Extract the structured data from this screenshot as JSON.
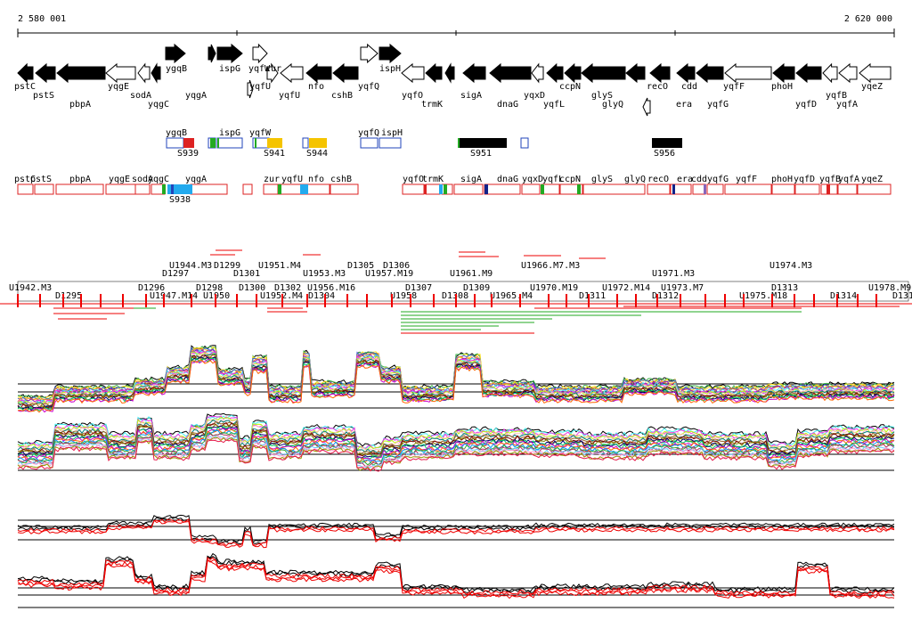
{
  "ruler": {
    "start_label": "2 580 001",
    "end_label": "2 620 000"
  },
  "colors": {
    "filled": "#000000",
    "hollow": "#ffffff",
    "box_red": "#dd2222",
    "box_blue": "#2244bb",
    "red": "#ee0000",
    "green": "#22aa22",
    "yellow": "#f5c400",
    "cyan": "#22aaee"
  },
  "genes_top": [
    "ygqB",
    "ispG",
    "yqfW",
    "zur"
  ],
  "genes": [
    {
      "name": "pstC",
      "row": 1
    },
    {
      "name": "pstS",
      "row": 2
    },
    {
      "name": "pbpA",
      "row": 3
    },
    {
      "name": "yqgE",
      "row": 1
    },
    {
      "name": "sodA",
      "row": 2
    },
    {
      "name": "yqgC",
      "row": 3
    },
    {
      "name": "yqgA",
      "row": 2
    },
    {
      "name": "yqfU",
      "row": 1
    },
    {
      "name": "yqfU",
      "row": 2
    },
    {
      "name": "nfo",
      "row": 1
    },
    {
      "name": "cshB",
      "row": 2
    },
    {
      "name": "yqfQ",
      "row": 1
    },
    {
      "name": "ispH",
      "row": 0
    },
    {
      "name": "yqfO",
      "row": 2
    },
    {
      "name": "trmK",
      "row": 3
    },
    {
      "name": "sigA",
      "row": 2
    },
    {
      "name": "dnaG",
      "row": 3
    },
    {
      "name": "yqxD",
      "row": 2
    },
    {
      "name": "ccpN",
      "row": 1
    },
    {
      "name": "yqfL",
      "row": 3
    },
    {
      "name": "glyS",
      "row": 2
    },
    {
      "name": "glyQ",
      "row": 3
    },
    {
      "name": "recO",
      "row": 1
    },
    {
      "name": "era",
      "row": 3
    },
    {
      "name": "cdd",
      "row": 1
    },
    {
      "name": "yqfG",
      "row": 3
    },
    {
      "name": "yqfF",
      "row": 1
    },
    {
      "name": "phoH",
      "row": 1
    },
    {
      "name": "yqfD",
      "row": 3
    },
    {
      "name": "yqfB",
      "row": 2
    },
    {
      "name": "yqfA",
      "row": 3
    },
    {
      "name": "yqeZ",
      "row": 1
    }
  ],
  "sbox_labels": [
    "ygqB",
    "ispG",
    "yqfW",
    "yqfQ",
    "ispH"
  ],
  "sbox_names": [
    "S939",
    "S941",
    "S944",
    "S951",
    "S956"
  ],
  "utr_labels": [
    "pstC",
    "pstS",
    "pbpA",
    "yqgE",
    "sodA",
    "yqgC",
    "yqgA",
    "zur",
    "yqfU",
    "nfo",
    "cshB",
    "yqfO",
    "trmK",
    "sigA",
    "dnaG",
    "yqxD",
    "yqfL",
    "ccpN",
    "glyS",
    "glyQ",
    "recO",
    "era",
    "cdd",
    "yqfG",
    "yqfF",
    "phoH",
    "yqfD",
    "yqfB",
    "yqfA",
    "yqeZ"
  ],
  "s938": "S938",
  "upper_labels": [
    "U1944.M3",
    "D1297",
    "D1299",
    "D1301",
    "U1951.M4",
    "U1953.M3",
    "D1305",
    "U1957.M19",
    "D1306",
    "U1961.M9",
    "U1966.M7.M3",
    "U1971.M3",
    "U1974.M3"
  ],
  "lower_labels": [
    "U1942.M3",
    "D1295",
    "D1296",
    "U1947.M14",
    "D1298",
    "U1950",
    "D1300",
    "U1952.M4",
    "D1302",
    "D1304",
    "U1956.M16",
    "U1958",
    "D1307",
    "D1308",
    "D1309",
    "U1965.M4",
    "U1970.M19",
    "D1311",
    "U1972.M14",
    "D1312",
    "U1973.M7",
    "U1975.M18",
    "D1313",
    "D1314",
    "U1978.M9",
    "D131"
  ]
}
